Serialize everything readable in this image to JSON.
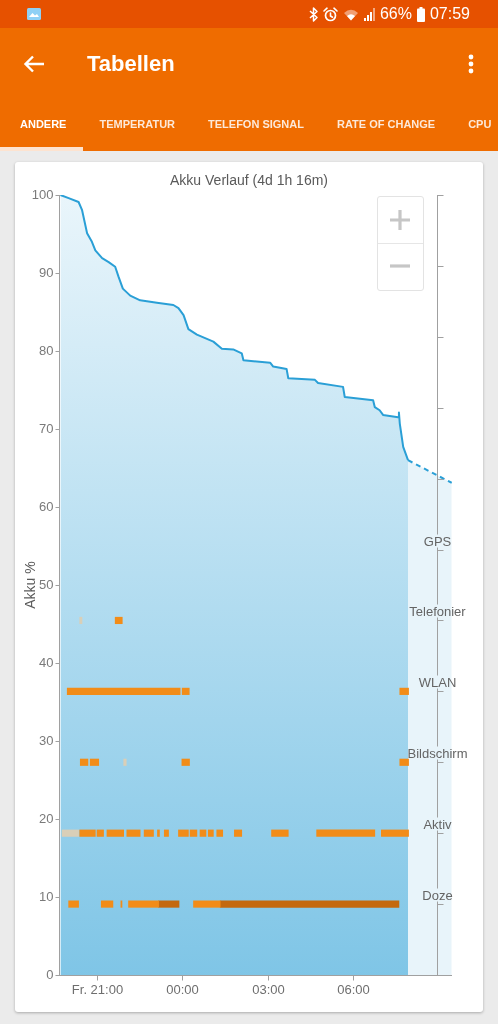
{
  "chart_data": [
    {
      "type": "other",
      "title": "Tabellen",
      "annotations": [
        "66%",
        "07:59",
        "ANDERE",
        "TEMPERATUR",
        "TELEFON SIGNAL",
        "RATE OF CHANGE",
        "CPU"
      ]
    },
    {
      "type": "area",
      "title": "Akku Verlauf (4d 1h 16m)",
      "ylabel": "Akku %",
      "xlim": [
        -4.35,
        9.5
      ],
      "xticks": [
        {
          "value": -3,
          "label": "Fr. 21:00"
        },
        {
          "value": 0,
          "label": "00:00"
        },
        {
          "value": 3,
          "label": "03:00"
        },
        {
          "value": 6,
          "label": "06:00"
        }
      ],
      "ylim": [
        0,
        100
      ],
      "yticks": [
        0,
        10,
        20,
        30,
        40,
        50,
        60,
        70,
        80,
        90,
        100
      ],
      "series": [
        {
          "type": "area",
          "color": "#2a9fd6",
          "x": [
            -4.3,
            -4.01,
            -3.66,
            -3.54,
            -3.36,
            -3.19,
            -3.07,
            -2.83,
            -2.6,
            -2.37,
            -2.25,
            -2.1,
            -1.84,
            -1.49,
            -0.9,
            -0.32,
            -0.14,
            0.04,
            0.21,
            0.51,
            1.09,
            1.39,
            1.79,
            2.09,
            2.15,
            3.09,
            3.2,
            3.67,
            3.73,
            4.67,
            4.78,
            5.66,
            5.72,
            6.72,
            6.78,
            6.95,
            7.07,
            7.6,
            7.63,
            7.66,
            7.78,
            7.95
          ],
          "values": [
            100,
            99.6,
            99.1,
            98.1,
            95.1,
            94,
            92.9,
            91.9,
            91.4,
            90.8,
            89.5,
            88,
            87.1,
            86.5,
            86.2,
            85.9,
            85.5,
            84.6,
            82.8,
            82.1,
            81.2,
            80.3,
            80.2,
            79.7,
            78.8,
            78.5,
            78,
            77.7,
            76.5,
            76.3,
            75.9,
            75.4,
            74.1,
            73.7,
            72.8,
            72.4,
            71.8,
            71.5,
            72.1,
            70.7,
            67.7,
            66
          ]
        },
        {
          "type": "area",
          "color": "#2a9fd6",
          "line_style": "dashed",
          "x": [
            7.95,
            9.49
          ],
          "values": [
            66,
            63.1
          ]
        }
      ]
    },
    {
      "type": "bar",
      "orientation": "horizontal",
      "xlim": [
        -4.35,
        9.5
      ],
      "tick_labels": "y",
      "categories": [
        null,
        null,
        null,
        null,
        null,
        "GPS",
        "Telefonier",
        "WLAN",
        "Bildschirm",
        "Aktiv",
        "Doze",
        null
      ],
      "series": [
        {
          "color": "#f28c18",
          "base": [
            null,
            null,
            null,
            null,
            null,
            null,
            -2.37,
            -4.06,
            -3.6,
            -3.62,
            -4.01,
            null
          ],
          "values": [
            null,
            null,
            null,
            null,
            null,
            null,
            0.25,
            3.98,
            0.27,
            0.55,
            0.35,
            null
          ]
        },
        {
          "color": "#f28c18",
          "base": [
            null,
            null,
            null,
            null,
            null,
            null,
            null,
            -0.01,
            -3.25,
            -3.01,
            -2.86,
            null
          ],
          "values": [
            null,
            null,
            null,
            null,
            null,
            null,
            null,
            0.25,
            0.3,
            0.23,
            0.41,
            null
          ]
        },
        {
          "color": "#f28c18",
          "base": [
            null,
            null,
            null,
            null,
            null,
            null,
            null,
            7.66,
            -0.02,
            -2.66,
            -2.17,
            null
          ],
          "values": [
            null,
            null,
            null,
            null,
            null,
            null,
            null,
            0.31,
            0.27,
            0.59,
            0.04,
            null
          ]
        },
        {
          "color": "#f28c18",
          "base": [
            null,
            null,
            null,
            null,
            null,
            null,
            null,
            null,
            7.66,
            -1.96,
            -1.9,
            null
          ],
          "values": [
            null,
            null,
            null,
            null,
            null,
            null,
            null,
            null,
            0.31,
            0.47,
            1.06,
            null
          ]
        },
        {
          "color": "#f28c18",
          "base": [
            null,
            null,
            null,
            null,
            null,
            null,
            null,
            null,
            null,
            -1.35,
            0.39,
            null
          ],
          "values": [
            null,
            null,
            null,
            null,
            null,
            null,
            null,
            null,
            null,
            0.33,
            0.94,
            null
          ]
        },
        {
          "color": "#f28c18",
          "base": [
            null,
            null,
            null,
            null,
            null,
            null,
            null,
            null,
            null,
            -0.88,
            null,
            null
          ],
          "values": [
            null,
            null,
            null,
            null,
            null,
            null,
            null,
            null,
            null,
            0.07,
            null,
            null
          ]
        },
        {
          "color": "#f28c18",
          "base": [
            null,
            null,
            null,
            null,
            null,
            null,
            null,
            null,
            null,
            -0.64,
            null,
            null
          ],
          "values": [
            null,
            null,
            null,
            null,
            null,
            null,
            null,
            null,
            null,
            0.15,
            null,
            null
          ]
        },
        {
          "color": "#f28c18",
          "base": [
            null,
            null,
            null,
            null,
            null,
            null,
            null,
            null,
            null,
            -0.14,
            null,
            null
          ],
          "values": [
            null,
            null,
            null,
            null,
            null,
            null,
            null,
            null,
            null,
            0.35,
            null,
            null
          ]
        },
        {
          "color": "#f28c18",
          "base": [
            null,
            null,
            null,
            null,
            null,
            null,
            null,
            null,
            null,
            0.27,
            null,
            null
          ],
          "values": [
            null,
            null,
            null,
            null,
            null,
            null,
            null,
            null,
            null,
            0.24,
            null,
            null
          ]
        },
        {
          "color": "#f28c18",
          "base": [
            null,
            null,
            null,
            null,
            null,
            null,
            null,
            null,
            null,
            0.62,
            null,
            null
          ],
          "values": [
            null,
            null,
            null,
            null,
            null,
            null,
            null,
            null,
            null,
            0.21,
            null,
            null
          ]
        },
        {
          "color": "#f28c18",
          "base": [
            null,
            null,
            null,
            null,
            null,
            null,
            null,
            null,
            null,
            0.91,
            null,
            null
          ],
          "values": [
            null,
            null,
            null,
            null,
            null,
            null,
            null,
            null,
            null,
            0.18,
            null,
            null
          ]
        },
        {
          "color": "#f28c18",
          "base": [
            null,
            null,
            null,
            null,
            null,
            null,
            null,
            null,
            null,
            1.21,
            null,
            null
          ],
          "values": [
            null,
            null,
            null,
            null,
            null,
            null,
            null,
            null,
            null,
            0.21,
            null,
            null
          ]
        },
        {
          "color": "#f28c18",
          "base": [
            null,
            null,
            null,
            null,
            null,
            null,
            null,
            null,
            null,
            1.83,
            null,
            null
          ],
          "values": [
            null,
            null,
            null,
            null,
            null,
            null,
            null,
            null,
            null,
            0.26,
            null,
            null
          ]
        },
        {
          "color": "#f28c18",
          "base": [
            null,
            null,
            null,
            null,
            null,
            null,
            null,
            null,
            null,
            3.14,
            null,
            null
          ],
          "values": [
            null,
            null,
            null,
            null,
            null,
            null,
            null,
            null,
            null,
            0.59,
            null,
            null
          ]
        },
        {
          "color": "#f28c18",
          "base": [
            null,
            null,
            null,
            null,
            null,
            null,
            null,
            null,
            null,
            4.73,
            null,
            null
          ],
          "values": [
            null,
            null,
            null,
            null,
            null,
            null,
            null,
            null,
            null,
            2.05,
            null,
            null
          ]
        },
        {
          "color": "#f28c18",
          "base": [
            null,
            null,
            null,
            null,
            null,
            null,
            null,
            null,
            null,
            7.01,
            null,
            null
          ],
          "values": [
            null,
            null,
            null,
            null,
            null,
            null,
            null,
            null,
            null,
            0.96,
            null,
            null
          ]
        },
        {
          "color": "#c4690f",
          "base": [
            null,
            null,
            null,
            null,
            null,
            null,
            null,
            null,
            null,
            null,
            -0.84,
            null
          ],
          "values": [
            null,
            null,
            null,
            null,
            null,
            null,
            null,
            null,
            null,
            null,
            0.72,
            null
          ]
        },
        {
          "color": "#c4690f",
          "base": [
            null,
            null,
            null,
            null,
            null,
            null,
            null,
            null,
            null,
            null,
            1.33,
            null
          ],
          "values": [
            null,
            null,
            null,
            null,
            null,
            null,
            null,
            null,
            null,
            null,
            6.3,
            null
          ]
        },
        {
          "color": "#d9cfb8",
          "base": [
            null,
            null,
            null,
            null,
            null,
            null,
            -3.62,
            null,
            -2.07,
            -4.24,
            null,
            null
          ],
          "values": [
            null,
            null,
            null,
            null,
            null,
            null,
            0.08,
            null,
            0.09,
            0.58,
            null,
            null
          ]
        }
      ]
    }
  ]
}
